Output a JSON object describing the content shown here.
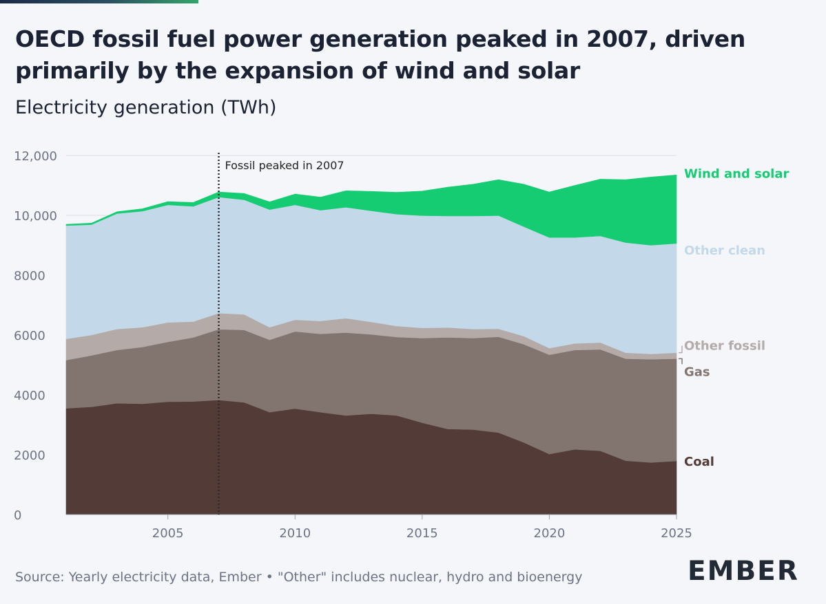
{
  "title": "OECD fossil fuel power generation peaked in 2007, driven primarily by the expansion of wind and solar",
  "subtitle": "Electricity generation (TWh)",
  "source": "Source: Yearly electricity data, Ember • \"Other\" includes nuclear, hydro and bioenergy",
  "logo": "EMBER",
  "colors": {
    "coal": "#533b37",
    "gas": "#827570",
    "other_fossil": "#b4aaa7",
    "other_clean": "#c3d8e8",
    "wind_solar": "#16cc72",
    "grid": "#d8dce6",
    "axis_text": "#6b7385"
  },
  "chart_data": {
    "type": "area",
    "stacked": true,
    "x": [
      2001,
      2002,
      2003,
      2004,
      2005,
      2006,
      2007,
      2008,
      2009,
      2010,
      2011,
      2012,
      2013,
      2014,
      2015,
      2016,
      2017,
      2018,
      2019,
      2020,
      2021,
      2022,
      2023,
      2024,
      2025
    ],
    "series": [
      {
        "key": "coal",
        "name": "Coal",
        "values": [
          3550,
          3600,
          3720,
          3700,
          3770,
          3780,
          3830,
          3750,
          3420,
          3540,
          3420,
          3310,
          3370,
          3310,
          3070,
          2860,
          2840,
          2740,
          2410,
          2020,
          2180,
          2130,
          1800,
          1740,
          1790
        ]
      },
      {
        "key": "gas",
        "name": "Gas",
        "values": [
          1610,
          1720,
          1780,
          1900,
          2000,
          2140,
          2360,
          2420,
          2420,
          2580,
          2620,
          2770,
          2650,
          2620,
          2830,
          3060,
          3060,
          3200,
          3280,
          3320,
          3320,
          3390,
          3410,
          3450,
          3420
        ]
      },
      {
        "key": "other_fossil",
        "name": "Other fossil",
        "values": [
          710,
          680,
          700,
          660,
          650,
          530,
          540,
          520,
          420,
          390,
          430,
          480,
          420,
          370,
          340,
          330,
          300,
          270,
          270,
          220,
          220,
          230,
          200,
          180,
          200
        ]
      },
      {
        "key": "other_clean",
        "name": "Other clean",
        "values": [
          3790,
          3690,
          3860,
          3880,
          3930,
          3850,
          3880,
          3830,
          3930,
          3840,
          3700,
          3710,
          3710,
          3740,
          3750,
          3730,
          3780,
          3780,
          3660,
          3700,
          3540,
          3560,
          3680,
          3630,
          3650
        ]
      },
      {
        "key": "wind_solar",
        "name": "Wind and solar",
        "values": [
          40,
          50,
          60,
          80,
          110,
          130,
          170,
          210,
          260,
          360,
          440,
          550,
          650,
          730,
          820,
          960,
          1060,
          1200,
          1420,
          1520,
          1740,
          1900,
          2100,
          2280,
          2290
        ]
      }
    ],
    "xlim": [
      2001,
      2025
    ],
    "ylim": [
      0,
      12000
    ],
    "xticks": [
      2005,
      2010,
      2015,
      2020,
      2025
    ],
    "yticks": [
      0,
      2000,
      4000,
      6000,
      8000,
      10000,
      12000
    ],
    "ytick_labels": [
      "0",
      "2000",
      "4000",
      "6000",
      "8000",
      "10,000",
      "12,000"
    ],
    "grid": "horizontal",
    "legend": "direct-labels-right",
    "annotation": {
      "x": 2007,
      "text": "Fossil peaked in 2007"
    }
  }
}
